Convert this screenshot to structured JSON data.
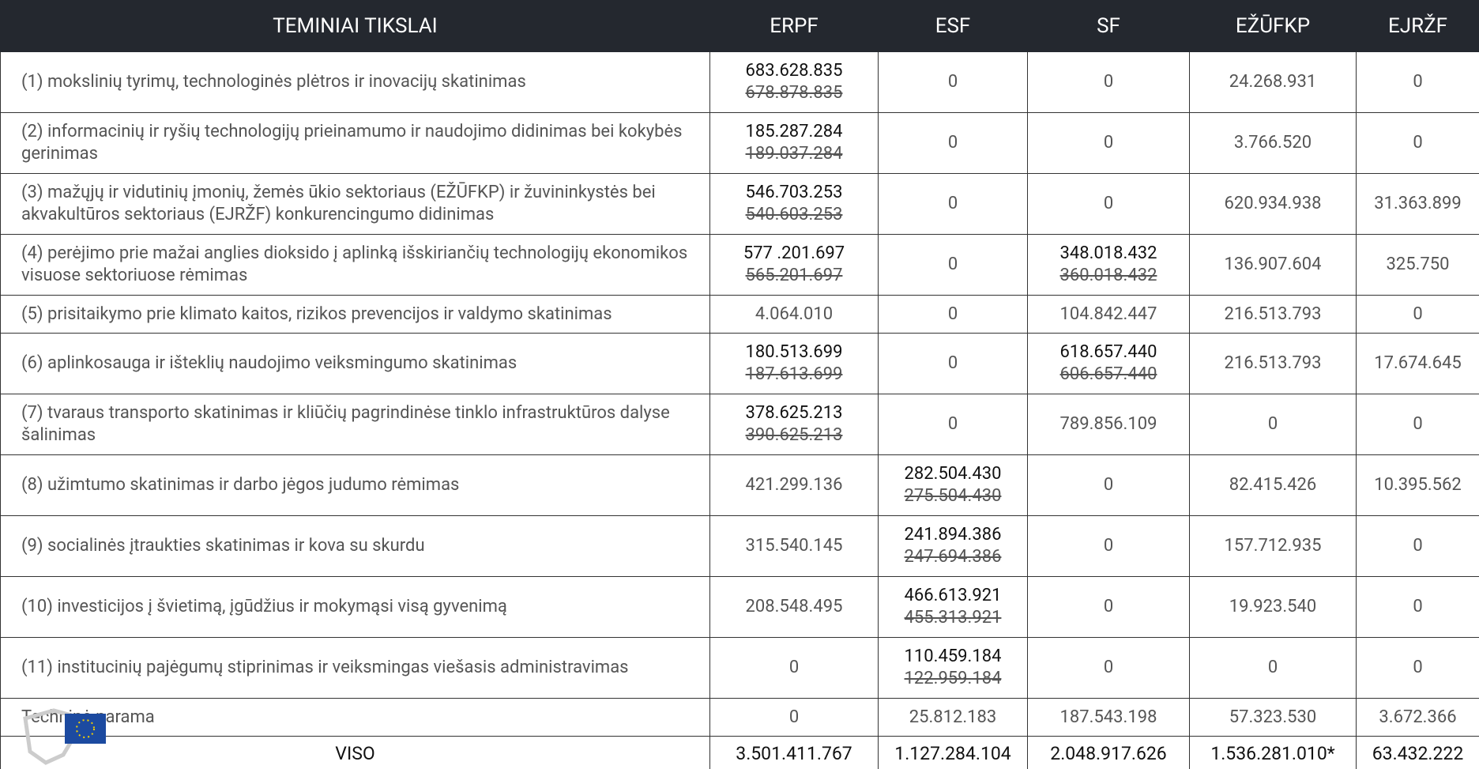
{
  "table": {
    "header": [
      "TEMINIAI TIKSLAI",
      "ERPF",
      "ESF",
      "SF",
      "EŽŪFKP",
      "EJRŽF"
    ],
    "rows": [
      {
        "label": "(1) mokslinių tyrimų, technologinės plėtros ir inovacijų skatinimas",
        "cells": [
          {
            "value": "683.628.835",
            "old": "678.878.835"
          },
          "0",
          "0",
          "24.268.931",
          "0"
        ]
      },
      {
        "label": "(2) informacinių ir ryšių technologijų prieinamumo ir naudojimo didinimas bei kokybės gerinimas",
        "cells": [
          {
            "value": "185.287.284",
            "old": "189.037.284"
          },
          "0",
          "0",
          "3.766.520",
          "0"
        ]
      },
      {
        "label": "(3) mažųjų ir vidutinių įmonių, žemės ūkio sektoriaus (EŽŪFKP) ir žuvininkystės bei akvakultūros sektoriaus (EJRŽF) konkurencingumo didinimas",
        "cells": [
          {
            "value": "546.703.253",
            "old": "540.603.253"
          },
          "0",
          "0",
          "620.934.938",
          "31.363.899"
        ]
      },
      {
        "label": "(4) perėjimo prie mažai anglies dioksido į aplinką išskiriančių technologijų ekonomikos visuose sektoriuose rėmimas",
        "cells": [
          {
            "value": "577 .201.697",
            "old": "565.201.697"
          },
          "0",
          {
            "value": "348.018.432",
            "old": "360.018.432"
          },
          "136.907.604",
          "325.750"
        ]
      },
      {
        "label": "(5) prisitaikymo prie klimato kaitos, rizikos prevencijos ir valdymo skatinimas",
        "cells": [
          "4.064.010",
          "0",
          "104.842.447",
          "216.513.793",
          "0"
        ]
      },
      {
        "label": "(6) aplinkosauga ir išteklių naudojimo veiksmingumo skatinimas",
        "cells": [
          {
            "value": "180.513.699",
            "old": "187.613.699"
          },
          "0",
          {
            "value": "618.657.440",
            "old": "606.657.440"
          },
          "216.513.793",
          "17.674.645"
        ]
      },
      {
        "label": "(7) tvaraus transporto skatinimas ir kliūčių pagrindinėse tinklo infrastruktūros dalyse šalinimas",
        "cells": [
          {
            "value": "378.625.213",
            "old": "390.625.213"
          },
          "0",
          "789.856.109",
          "0",
          "0"
        ]
      },
      {
        "label": "(8) užimtumo skatinimas ir darbo jėgos judumo rėmimas",
        "cells": [
          "421.299.136",
          {
            "value": "282.504.430",
            "old": "275.504.430"
          },
          "0",
          "82.415.426",
          "10.395.562"
        ]
      },
      {
        "label": "(9) socialinės įtraukties skatinimas ir kova su skurdu",
        "cells": [
          "315.540.145",
          {
            "value": "241.894.386",
            "old": "247.694.386"
          },
          "0",
          "157.712.935",
          "0"
        ]
      },
      {
        "label": "(10) investicijos į švietimą, įgūdžius ir mokymąsi visą gyvenimą",
        "cells": [
          "208.548.495",
          {
            "value": "466.613.921",
            "old": "455.313.921"
          },
          "0",
          "19.923.540",
          "0"
        ]
      },
      {
        "label": "(11) institucinių pajėgumų stiprinimas ir veiksmingas viešasis administravimas",
        "cells": [
          "0",
          {
            "value": "110.459.184",
            "old": "122.959.184"
          },
          "0",
          "0",
          "0"
        ]
      },
      {
        "label": "Techninė parama",
        "cells": [
          "0",
          "25.812.183",
          "187.543.198",
          "57.323.530",
          "3.672.366"
        ]
      }
    ],
    "total": {
      "label": "VISO",
      "cells": [
        "3.501.411.767",
        "1.127.284.104",
        "2.048.917.626",
        "1.536.281.010*",
        "63.432.222"
      ]
    }
  }
}
